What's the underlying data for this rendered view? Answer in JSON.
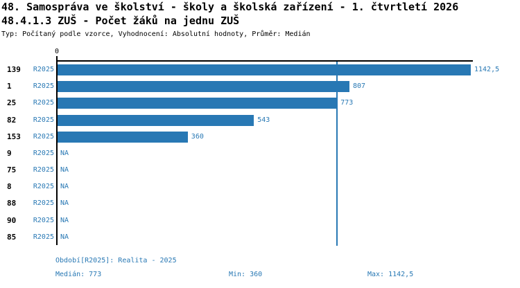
{
  "colors": {
    "accent_blue": "#2878b4",
    "bar_blue": "#2878b4",
    "axis_black": "#000000"
  },
  "header": {
    "title_line1": "48. Samospráva ve školství - školy a školská zařízení - 1. čtvrtletí 2026",
    "title_line2": "48.4.1.3 ZUŠ - Počet žáků na jednu ZUŠ",
    "subtitle": "Typ: Počítaný podle vzorce, Vyhodnocení: Absolutní hodnoty, Průměr: Medián"
  },
  "chart_data": {
    "type": "bar",
    "orientation": "horizontal",
    "x_axis": {
      "origin_label": "0",
      "min": 0,
      "max": 1142.5,
      "ticks": [
        "0"
      ]
    },
    "series_period": "R2025",
    "na_label": "NA",
    "categories": [
      "139",
      "1",
      "25",
      "82",
      "153",
      "9",
      "75",
      "8",
      "88",
      "90",
      "85"
    ],
    "rows": [
      {
        "id": "139",
        "period": "R2025",
        "value": 1142.5,
        "label": "1142,5"
      },
      {
        "id": "1",
        "period": "R2025",
        "value": 807,
        "label": "807"
      },
      {
        "id": "25",
        "period": "R2025",
        "value": 773,
        "label": "773"
      },
      {
        "id": "82",
        "period": "R2025",
        "value": 543,
        "label": "543"
      },
      {
        "id": "153",
        "period": "R2025",
        "value": 360,
        "label": "360"
      },
      {
        "id": "9",
        "period": "R2025",
        "value": null,
        "label": "NA"
      },
      {
        "id": "75",
        "period": "R2025",
        "value": null,
        "label": "NA"
      },
      {
        "id": "8",
        "period": "R2025",
        "value": null,
        "label": "NA"
      },
      {
        "id": "88",
        "period": "R2025",
        "value": null,
        "label": "NA"
      },
      {
        "id": "90",
        "period": "R2025",
        "value": null,
        "label": "NA"
      },
      {
        "id": "85",
        "period": "R2025",
        "value": null,
        "label": "NA"
      }
    ],
    "median": 773,
    "min": 360,
    "max": 1142.5,
    "median_line_value": 773
  },
  "footer": {
    "period_label": "Období[R2025]: Realita - 2025",
    "median_label": "Medián: 773",
    "min_label": "Min: 360",
    "max_label": "Max: 1142,5"
  }
}
